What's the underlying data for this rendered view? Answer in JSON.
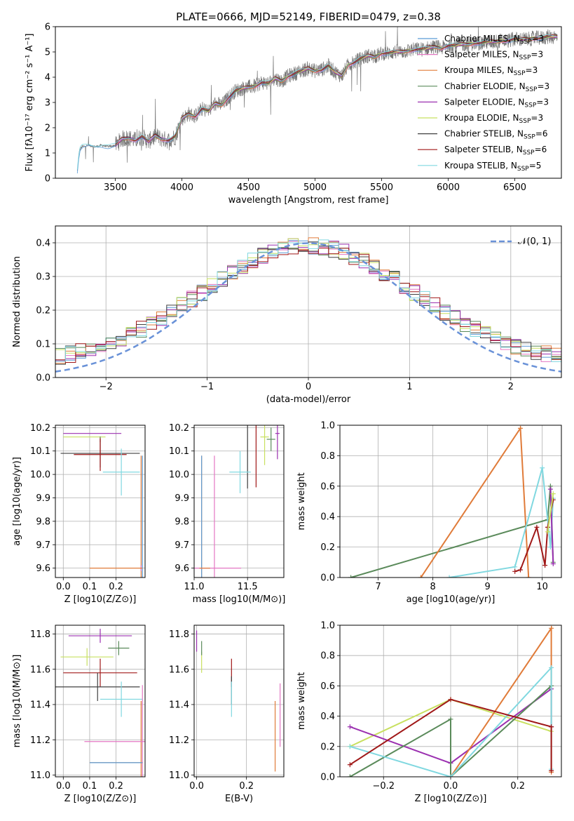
{
  "figure_title": "PLATE=0666, MJD=52149, FIBERID=0479, z=0.38",
  "palette": {
    "Chabrier MILES": "#5b9bd5",
    "Salpeter MILES": "#e377c2",
    "Kroupa MILES": "#e07b39",
    "Chabrier ELODIE": "#5a8a5a",
    "Salpeter ELODIE": "#9b30b0",
    "Kroupa ELODIE": "#c8e060",
    "Chabrier STELIB": "#404040",
    "Salpeter STELIB": "#a01818",
    "Kroupa STELIB": "#80d8e0",
    "gauss": "#6a92d8",
    "spectrum": "#777777"
  },
  "legend_spectrum": [
    {
      "name": "Chabrier MILES",
      "n": "3"
    },
    {
      "name": "Salpeter MILES",
      "n": "3"
    },
    {
      "name": "Kroupa MILES",
      "n": "3"
    },
    {
      "name": "Chabrier ELODIE",
      "n": "3"
    },
    {
      "name": "Salpeter ELODIE",
      "n": "3"
    },
    {
      "name": "Kroupa ELODIE",
      "n": "3"
    },
    {
      "name": "Chabrier STELIB",
      "n": "6"
    },
    {
      "name": "Salpeter STELIB",
      "n": "6"
    },
    {
      "name": "Kroupa STELIB",
      "n": "5"
    }
  ],
  "chart_data": [
    {
      "id": "spectrum",
      "type": "line",
      "xlabel": "wavelength [Angstrom, rest frame]",
      "ylabel": "Flux [fλ10⁻¹⁷ erg cm⁻² s⁻¹ A⁻¹]",
      "xlim": [
        3050,
        6850
      ],
      "ylim": [
        0,
        6
      ],
      "xticks": [
        3500,
        4000,
        4500,
        5000,
        5500,
        6000,
        6500
      ],
      "yticks": [
        0,
        1,
        2,
        3,
        4,
        5,
        6
      ],
      "data_x": [
        3210,
        3230,
        3250,
        3300,
        3350,
        3400,
        3450,
        3500,
        3550,
        3600,
        3650,
        3700,
        3750,
        3800,
        3850,
        3900,
        3950,
        4000,
        4050,
        4100,
        4150,
        4200,
        4250,
        4300,
        4350,
        4400,
        4450,
        4500,
        4550,
        4600,
        4650,
        4700,
        4750,
        4800,
        4850,
        4900,
        4950,
        5000,
        5050,
        5100,
        5150,
        5200,
        5250,
        5300,
        5350,
        5400,
        5450,
        5500,
        5550,
        5600,
        5650,
        5700,
        5750,
        5800,
        5850,
        5900,
        5950,
        6000,
        6050,
        6100,
        6150,
        6200,
        6250,
        6300,
        6350,
        6400,
        6450,
        6500,
        6550,
        6600,
        6650,
        6700,
        6750
      ],
      "data_y": [
        0.0,
        1.1,
        1.25,
        1.3,
        1.25,
        1.3,
        1.25,
        1.3,
        1.55,
        1.6,
        1.5,
        1.65,
        1.45,
        1.7,
        1.55,
        1.5,
        1.65,
        2.35,
        2.55,
        2.45,
        2.75,
        2.65,
        2.95,
        2.9,
        3.2,
        3.45,
        3.55,
        3.6,
        3.65,
        3.8,
        3.75,
        3.95,
        3.85,
        4.05,
        4.15,
        4.25,
        4.35,
        4.25,
        4.3,
        4.45,
        4.2,
        4.05,
        4.5,
        4.6,
        4.75,
        4.85,
        4.8,
        4.95,
        4.95,
        5.0,
        5.0,
        5.05,
        5.1,
        5.1,
        5.15,
        5.2,
        5.15,
        5.25,
        5.25,
        5.3,
        5.3,
        5.35,
        5.35,
        5.4,
        5.4,
        5.45,
        5.45,
        5.5,
        5.5,
        5.5,
        5.55,
        5.55,
        5.6
      ]
    },
    {
      "id": "residuals",
      "type": "line",
      "xlabel": "(data-model)/error",
      "ylabel": "Normed distribution",
      "xlim": [
        -2.5,
        2.5
      ],
      "ylim": [
        0,
        0.45
      ],
      "xticks": [
        -2,
        -1,
        0,
        1,
        2
      ],
      "yticks": [
        0.0,
        0.1,
        0.2,
        0.3,
        0.4
      ],
      "legend": "𝒩(0, 1)",
      "gauss": {
        "mean": 0,
        "sigma": 1
      }
    },
    {
      "id": "age-vs-Z",
      "type": "scatter",
      "xlabel": "Z [log10(Z/Z⊙)]",
      "ylabel": "age  [log10(age/yr)]",
      "xlim": [
        -0.03,
        0.31
      ],
      "ylim": [
        9.56,
        10.21
      ],
      "xticks": [
        0.0,
        0.1,
        0.2
      ],
      "yticks": [
        9.6,
        9.7,
        9.8,
        9.9,
        10.0,
        10.1,
        10.2
      ],
      "points": [
        {
          "s": "Salpeter ELODIE",
          "x": 0.11,
          "y": 10.175,
          "xe": 0.11,
          "ye": 0.0
        },
        {
          "s": "Kroupa ELODIE",
          "x": 0.08,
          "y": 10.16,
          "xe": 0.08,
          "ye": 0.0
        },
        {
          "s": "Chabrier ELODIE",
          "x": 0.14,
          "y": 10.15,
          "xe": 0.0,
          "ye": 0.0
        },
        {
          "s": "Chabrier STELIB",
          "x": 0.14,
          "y": 10.09,
          "xe": 0.15,
          "ye": 0.06
        },
        {
          "s": "Salpeter STELIB",
          "x": 0.14,
          "y": 10.085,
          "xe": 0.1,
          "ye": 0.07
        },
        {
          "s": "Kroupa STELIB",
          "x": 0.22,
          "y": 10.01,
          "xe": 0.07,
          "ye": 0.1
        },
        {
          "s": "Kroupa MILES",
          "x": 0.295,
          "y": 9.6,
          "xe": 0.0,
          "ye": 0.48
        },
        {
          "s": "Chabrier MILES",
          "x": 0.3,
          "y": 9.6,
          "xe": 0.0,
          "ye": 0.48
        },
        {
          "s": "Salpeter MILES",
          "x": 0.295,
          "y": 9.6,
          "xe": 0.0,
          "ye": 0.0
        },
        {
          "s": "Kroupa MILES",
          "x": 0.2,
          "y": 9.6,
          "xe": 0.1,
          "ye": 0.0
        }
      ]
    },
    {
      "id": "age-vs-mass",
      "type": "scatter",
      "xlabel": "mass [log10(M/M⊙)]",
      "ylabel": "",
      "xlim": [
        11.0,
        11.84
      ],
      "ylim": [
        9.56,
        10.21
      ],
      "xticks": [
        11.0,
        11.5
      ],
      "yticks": [
        9.6,
        9.7,
        9.8,
        9.9,
        10.0,
        10.1,
        10.2
      ],
      "points": [
        {
          "s": "Salpeter ELODIE",
          "x": 11.78,
          "y": 10.175,
          "xe": 0.02,
          "ye": 0.11
        },
        {
          "s": "Kroupa ELODIE",
          "x": 11.66,
          "y": 10.16,
          "xe": 0.04,
          "ye": 0.12
        },
        {
          "s": "Chabrier ELODIE",
          "x": 11.72,
          "y": 10.15,
          "xe": 0.04,
          "ye": 0.05
        },
        {
          "s": "Chabrier STELIB",
          "x": 11.5,
          "y": 10.09,
          "xe": 0.0,
          "ye": 0.15
        },
        {
          "s": "Salpeter STELIB",
          "x": 11.58,
          "y": 10.085,
          "xe": 0.0,
          "ye": 0.14
        },
        {
          "s": "Kroupa STELIB",
          "x": 11.43,
          "y": 10.01,
          "xe": 0.1,
          "ye": 0.09
        },
        {
          "s": "Kroupa MILES",
          "x": 11.07,
          "y": 9.6,
          "xe": 0.0,
          "ye": 0.48
        },
        {
          "s": "Chabrier MILES",
          "x": 11.07,
          "y": 9.6,
          "xe": 0.0,
          "ye": 0.48
        },
        {
          "s": "Salpeter MILES",
          "x": 11.19,
          "y": 9.6,
          "xe": 0.25,
          "ye": 0.48
        },
        {
          "s": "Kroupa MILES",
          "x": 11.1,
          "y": 9.6,
          "xe": 0.05,
          "ye": 0.0
        }
      ]
    },
    {
      "id": "massweight-vs-age",
      "type": "line",
      "xlabel": "age  [log10(age/yr)]",
      "ylabel": "mass weight",
      "xlim": [
        6.3,
        10.35
      ],
      "ylim": [
        0,
        1.0
      ],
      "xticks": [
        7,
        8,
        9,
        10
      ],
      "yticks": [
        0.0,
        0.2,
        0.4,
        0.6,
        0.8,
        1.0
      ],
      "series": [
        {
          "s": "Chabrier ELODIE",
          "x": [
            6.5,
            10.1,
            10.15,
            10.2
          ],
          "y": [
            0.0,
            0.38,
            0.6,
            0.1
          ]
        },
        {
          "s": "Kroupa MILES",
          "x": [
            7.78,
            9.6,
            9.75
          ],
          "y": [
            0.0,
            0.98,
            0.0
          ]
        },
        {
          "s": "Kroupa STELIB",
          "x": [
            8.3,
            9.5,
            10.0,
            10.15,
            10.2
          ],
          "y": [
            0.0,
            0.07,
            0.72,
            0.2,
            0.52
          ]
        },
        {
          "s": "Salpeter STELIB",
          "x": [
            9.5,
            9.6,
            9.9,
            10.05,
            10.1,
            10.2
          ],
          "y": [
            0.04,
            0.05,
            0.33,
            0.08,
            0.33,
            0.51
          ]
        },
        {
          "s": "Salpeter ELODIE",
          "x": [
            10.15,
            10.2
          ],
          "y": [
            0.58,
            0.09
          ]
        },
        {
          "s": "Kroupa ELODIE",
          "x": [
            10.1,
            10.2
          ],
          "y": [
            0.3,
            0.55
          ]
        }
      ]
    },
    {
      "id": "mass-vs-Z",
      "type": "scatter",
      "xlabel": "Z [log10(Z/Z⊙)]",
      "ylabel": "mass [log10(M/M⊙)]",
      "xlim": [
        -0.03,
        0.31
      ],
      "ylim": [
        10.99,
        11.85
      ],
      "xticks": [
        0.0,
        0.1,
        0.2
      ],
      "yticks": [
        11.0,
        11.2,
        11.4,
        11.6,
        11.8
      ],
      "points": [
        {
          "s": "Salpeter ELODIE",
          "x": 0.14,
          "y": 11.79,
          "xe": 0.12,
          "ye": 0.04
        },
        {
          "s": "Chabrier ELODIE",
          "x": 0.21,
          "y": 11.72,
          "xe": 0.04,
          "ye": 0.04
        },
        {
          "s": "Kroupa ELODIE",
          "x": 0.09,
          "y": 11.67,
          "xe": 0.1,
          "ye": 0.05
        },
        {
          "s": "Salpeter STELIB",
          "x": 0.14,
          "y": 11.58,
          "xe": 0.14,
          "ye": 0.08
        },
        {
          "s": "Chabrier STELIB",
          "x": 0.13,
          "y": 11.5,
          "xe": 0.16,
          "ye": 0.08
        },
        {
          "s": "Kroupa STELIB",
          "x": 0.22,
          "y": 11.43,
          "xe": 0.08,
          "ye": 0.1
        },
        {
          "s": "Kroupa MILES",
          "x": 0.295,
          "y": 11.07,
          "xe": 0.0,
          "ye": 0.35
        },
        {
          "s": "Salpeter MILES",
          "x": 0.3,
          "y": 11.19,
          "xe": 0.0,
          "ye": 0.32
        },
        {
          "s": "Salpeter MILES",
          "x": 0.2,
          "y": 11.19,
          "xe": 0.12,
          "ye": 0.0
        },
        {
          "s": "Kroupa MILES",
          "x": 0.2,
          "y": 11.07,
          "xe": 0.1,
          "ye": 0.0
        },
        {
          "s": "Chabrier MILES",
          "x": 0.2,
          "y": 11.07,
          "xe": 0.1,
          "ye": 0.0
        }
      ]
    },
    {
      "id": "mass-vs-EBV",
      "type": "scatter",
      "xlabel": "E(B-V)",
      "ylabel": "",
      "xlim": [
        -0.01,
        0.35
      ],
      "ylim": [
        10.99,
        11.85
      ],
      "xticks": [
        0.0,
        0.2
      ],
      "yticks": [
        11.0,
        11.2,
        11.4,
        11.6,
        11.8
      ],
      "points": [
        {
          "s": "Salpeter ELODIE",
          "x": 0.0,
          "y": 11.76,
          "xe": 0.0,
          "ye": 0.06
        },
        {
          "s": "Kroupa ELODIE",
          "x": 0.02,
          "y": 11.64,
          "xe": 0.0,
          "ye": 0.06
        },
        {
          "s": "Chabrier ELODIE",
          "x": 0.02,
          "y": 11.72,
          "xe": 0.0,
          "ye": 0.04
        },
        {
          "s": "Salpeter STELIB",
          "x": 0.14,
          "y": 11.58,
          "xe": 0.0,
          "ye": 0.08
        },
        {
          "s": "Chabrier STELIB",
          "x": 0.14,
          "y": 11.48,
          "xe": 0.0,
          "ye": 0.08
        },
        {
          "s": "Kroupa STELIB",
          "x": 0.14,
          "y": 11.43,
          "xe": 0.0,
          "ye": 0.1
        },
        {
          "s": "Kroupa MILES",
          "x": 0.315,
          "y": 11.22,
          "xe": 0.0,
          "ye": 0.2
        },
        {
          "s": "Salpeter MILES",
          "x": 0.335,
          "y": 11.34,
          "xe": 0.0,
          "ye": 0.18
        }
      ]
    },
    {
      "id": "massweight-vs-Z",
      "type": "line",
      "xlabel": "Z [log10(Z/Z⊙)]",
      "ylabel": "mass weight",
      "xlim": [
        -0.33,
        0.33
      ],
      "ylim": [
        0,
        1.0
      ],
      "xticks": [
        -0.2,
        0.0,
        0.2
      ],
      "yticks": [
        0.0,
        0.2,
        0.4,
        0.6,
        0.8,
        1.0
      ],
      "series": [
        {
          "s": "Kroupa ELODIE",
          "x": [
            -0.3,
            0.0,
            0.3
          ],
          "y": [
            0.2,
            0.51,
            0.3
          ]
        },
        {
          "s": "Salpeter ELODIE",
          "x": [
            -0.3,
            0.0,
            0.3,
            0.3
          ],
          "y": [
            0.33,
            0.09,
            0.58,
            0.33
          ]
        },
        {
          "s": "Chabrier ELODIE",
          "x": [
            -0.3,
            0.0,
            0.0,
            0.3
          ],
          "y": [
            0.0,
            0.38,
            0.0,
            0.6
          ]
        },
        {
          "s": "Kroupa MILES",
          "x": [
            0.0,
            0.3,
            0.3
          ],
          "y": [
            0.0,
            0.98,
            0.03
          ]
        },
        {
          "s": "Kroupa STELIB",
          "x": [
            -0.3,
            0.0,
            0.3,
            0.3
          ],
          "y": [
            0.2,
            0.0,
            0.72,
            0.05
          ]
        },
        {
          "s": "Salpeter STELIB",
          "x": [
            -0.3,
            0.0,
            0.3,
            0.3
          ],
          "y": [
            0.08,
            0.51,
            0.33,
            0.04
          ]
        }
      ]
    }
  ]
}
